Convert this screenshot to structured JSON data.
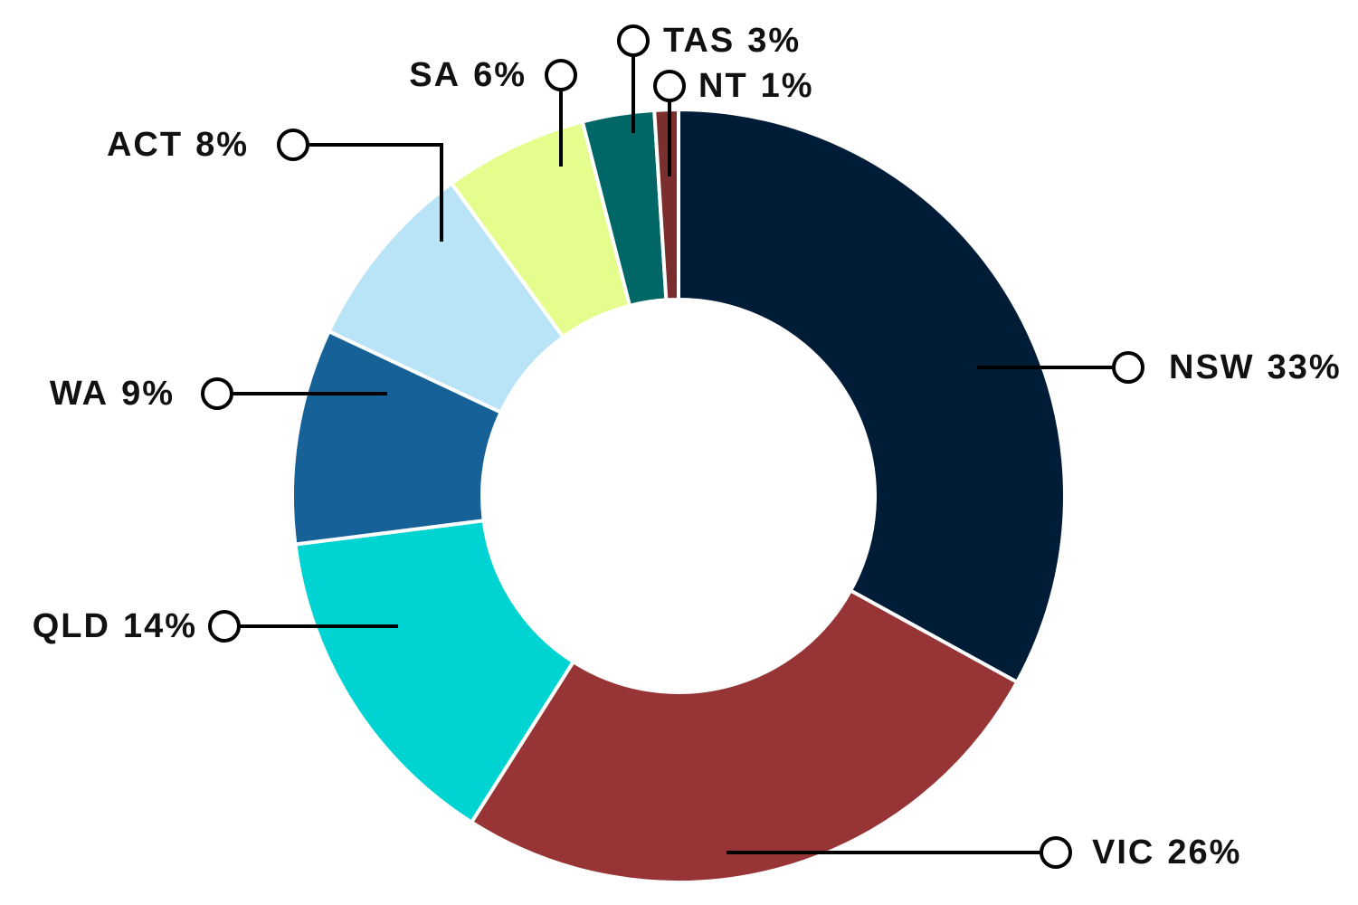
{
  "chart_data": {
    "type": "donut",
    "categories": [
      "NSW",
      "VIC",
      "QLD",
      "WA",
      "ACT",
      "SA",
      "TAS",
      "NT"
    ],
    "values": [
      33,
      26,
      14,
      9,
      8,
      6,
      3,
      1
    ],
    "value_labels": [
      "33%",
      "26%",
      "14%",
      "9%",
      "8%",
      "6%",
      "3%",
      "1%"
    ],
    "colors": [
      "#011c37",
      "#973536",
      "#00d4d2",
      "#176199",
      "#b9e4f7",
      "#e4fd8d",
      "#006766",
      "#7a2e2e"
    ]
  }
}
